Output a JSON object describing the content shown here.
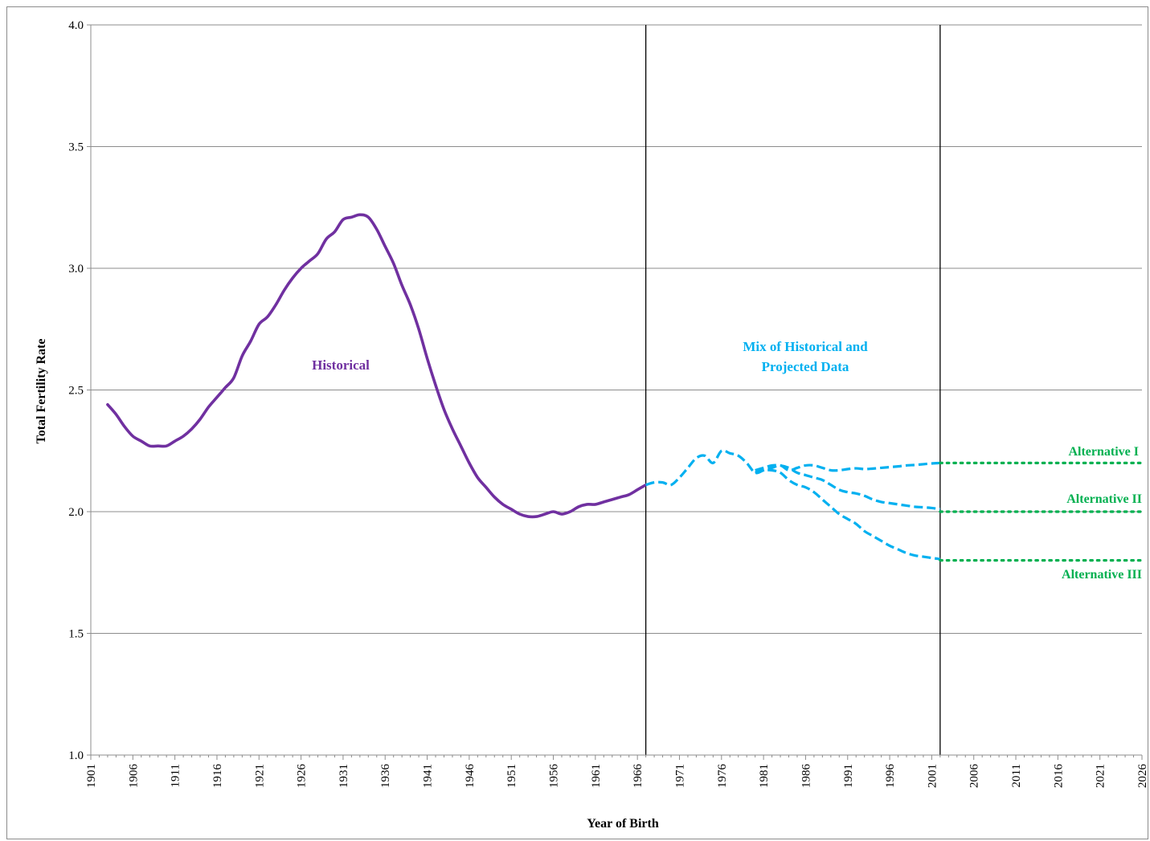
{
  "chart_data": {
    "type": "line",
    "xlabel": "Year of Birth",
    "ylabel": "Total Fertility Rate",
    "xlim": [
      1901,
      2026
    ],
    "ylim": [
      1.0,
      4.0
    ],
    "y_ticks": [
      "1.0",
      "1.5",
      "2.0",
      "2.5",
      "3.0",
      "3.5",
      "4.0"
    ],
    "x_ticks": [
      "1901",
      "1906",
      "1911",
      "1916",
      "1921",
      "1926",
      "1931",
      "1936",
      "1941",
      "1946",
      "1951",
      "1956",
      "1961",
      "1966",
      "1971",
      "1976",
      "1981",
      "1986",
      "1991",
      "1996",
      "2001",
      "2006",
      "2011",
      "2016",
      "2021",
      "2026"
    ],
    "grid": true,
    "vertical_lines": [
      1967,
      2002
    ],
    "region_labels": {
      "historical": "Historical",
      "mix_line1": "Mix of Historical and",
      "mix_line2": "Projected Data"
    },
    "colors": {
      "historical": "#7030a0",
      "mixed": "#00b0f0",
      "projected": "#00b050"
    },
    "series": [
      {
        "style": "historical",
        "x": [
          1903,
          1904,
          1905,
          1906,
          1907,
          1908,
          1909,
          1910,
          1911,
          1912,
          1913,
          1914,
          1915,
          1916,
          1917,
          1918,
          1919,
          1920,
          1921,
          1922,
          1923,
          1924,
          1925,
          1926,
          1927,
          1928,
          1929,
          1930,
          1931,
          1932,
          1933,
          1934,
          1935,
          1936,
          1937,
          1938,
          1939,
          1940,
          1941,
          1942,
          1943,
          1944,
          1945,
          1946,
          1947,
          1948,
          1949,
          1950,
          1951,
          1952,
          1953,
          1954,
          1955,
          1956,
          1957,
          1958,
          1959,
          1960,
          1961,
          1962,
          1963,
          1964,
          1965,
          1966,
          1967
        ],
        "y": [
          2.44,
          2.4,
          2.35,
          2.31,
          2.29,
          2.27,
          2.27,
          2.27,
          2.29,
          2.31,
          2.34,
          2.38,
          2.43,
          2.47,
          2.51,
          2.55,
          2.64,
          2.7,
          2.77,
          2.8,
          2.85,
          2.91,
          2.96,
          3.0,
          3.03,
          3.06,
          3.12,
          3.15,
          3.2,
          3.21,
          3.22,
          3.21,
          3.16,
          3.09,
          3.02,
          2.93,
          2.85,
          2.75,
          2.63,
          2.52,
          2.42,
          2.34,
          2.27,
          2.2,
          2.14,
          2.1,
          2.06,
          2.03,
          2.01,
          1.99,
          1.98,
          1.98,
          1.99,
          2.0,
          1.99,
          2.0,
          2.02,
          2.03,
          2.03,
          2.04,
          2.05,
          2.06,
          2.07,
          2.09,
          2.11
        ]
      },
      {
        "style": "mixed",
        "x": [
          1967,
          1968,
          1969,
          1970,
          1971,
          1972,
          1973,
          1974,
          1975,
          1976,
          1977,
          1978,
          1979,
          1980,
          1981,
          1982,
          1983,
          1984,
          1985,
          1986,
          1987,
          1988,
          1989,
          1990,
          1991,
          1992,
          1993,
          1994,
          1995,
          1996,
          1997,
          1998,
          1999,
          2000,
          2001,
          2002
        ],
        "y": [
          2.11,
          2.12,
          2.12,
          2.11,
          2.14,
          2.18,
          2.22,
          2.23,
          2.2,
          2.25,
          2.24,
          2.23,
          2.2,
          2.16,
          2.17,
          2.18,
          2.19,
          2.17,
          2.18,
          2.19,
          2.19,
          2.18,
          2.17,
          2.17,
          2.175,
          2.178,
          2.175,
          2.177,
          2.18,
          2.183,
          2.186,
          2.19,
          2.192,
          2.195,
          2.198,
          2.2
        ]
      },
      {
        "style": "mixed",
        "x": [
          1980,
          1981,
          1982,
          1983,
          1984,
          1985,
          1986,
          1987,
          1988,
          1989,
          1990,
          1991,
          1992,
          1993,
          1994,
          1995,
          1996,
          1997,
          1998,
          1999,
          2000,
          2001,
          2002
        ],
        "y": [
          2.17,
          2.18,
          2.19,
          2.19,
          2.18,
          2.16,
          2.15,
          2.14,
          2.13,
          2.11,
          2.09,
          2.08,
          2.075,
          2.065,
          2.05,
          2.04,
          2.035,
          2.03,
          2.025,
          2.02,
          2.018,
          2.015,
          2.01
        ]
      },
      {
        "style": "mixed",
        "x": [
          1980,
          1981,
          1982,
          1983,
          1984,
          1985,
          1986,
          1987,
          1988,
          1989,
          1990,
          1991,
          1992,
          1993,
          1994,
          1995,
          1996,
          1997,
          1998,
          1999,
          2000,
          2001,
          2002
        ],
        "y": [
          2.16,
          2.17,
          2.17,
          2.16,
          2.13,
          2.11,
          2.1,
          2.08,
          2.05,
          2.02,
          1.99,
          1.97,
          1.95,
          1.92,
          1.9,
          1.88,
          1.86,
          1.845,
          1.83,
          1.82,
          1.815,
          1.81,
          1.805
        ]
      },
      {
        "name": "Alternative I",
        "style": "projected",
        "x": [
          2002,
          2026
        ],
        "y": [
          2.2,
          2.2
        ]
      },
      {
        "name": "Alternative II",
        "style": "projected",
        "x": [
          2002,
          2026
        ],
        "y": [
          2.0,
          2.0
        ]
      },
      {
        "name": "Alternative III",
        "style": "projected",
        "x": [
          2002,
          2026
        ],
        "y": [
          1.8,
          1.8
        ]
      }
    ]
  }
}
